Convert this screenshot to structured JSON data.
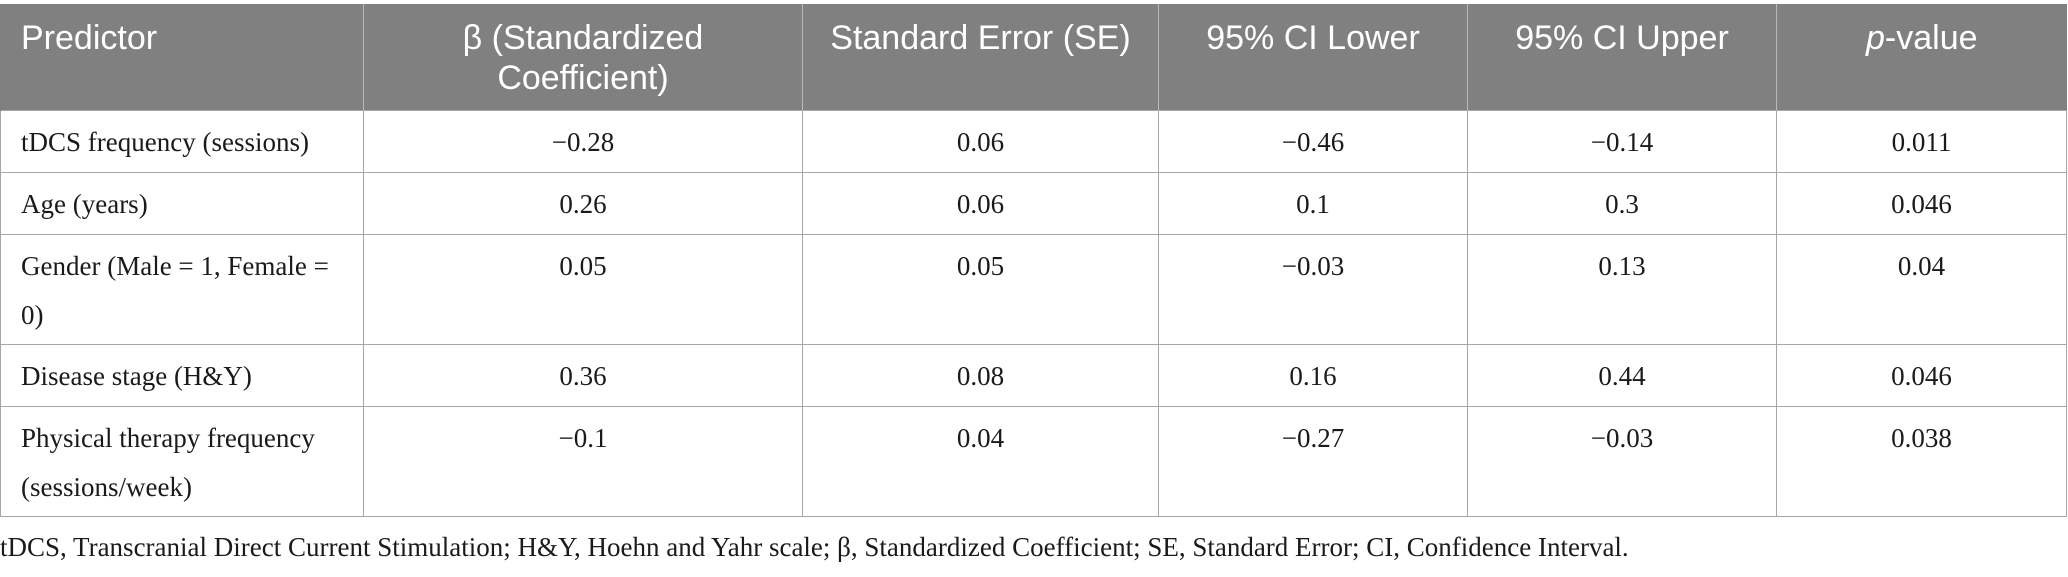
{
  "table": {
    "headers": [
      {
        "text": "Predictor"
      },
      {
        "text": "β (Standardized Coefficient)"
      },
      {
        "text": "Standard Error (SE)"
      },
      {
        "text": "95% CI Lower"
      },
      {
        "text": "95% CI Upper"
      },
      {
        "italic": "p",
        "text": "-value"
      }
    ],
    "rows": [
      {
        "predictor": "tDCS frequency (sessions)",
        "beta": "−0.28",
        "se": "0.06",
        "ci_lower": "−0.46",
        "ci_upper": "−0.14",
        "p": "0.011"
      },
      {
        "predictor": "Age (years)",
        "beta": "0.26",
        "se": "0.06",
        "ci_lower": "0.1",
        "ci_upper": "0.3",
        "p": "0.046"
      },
      {
        "predictor": "Gender (Male = 1, Female = 0)",
        "beta": "0.05",
        "se": "0.05",
        "ci_lower": "−0.03",
        "ci_upper": "0.13",
        "p": "0.04"
      },
      {
        "predictor": "Disease stage (H&Y)",
        "beta": "0.36",
        "se": "0.08",
        "ci_lower": "0.16",
        "ci_upper": "0.44",
        "p": "0.046"
      },
      {
        "predictor": "Physical therapy frequency (sessions/week)",
        "beta": "−0.1",
        "se": "0.04",
        "ci_lower": "−0.27",
        "ci_upper": "−0.03",
        "p": "0.038"
      }
    ]
  },
  "footnote": "tDCS, Transcranial Direct Current Stimulation; H&Y, Hoehn and Yahr scale; β, Standardized Coefficient; SE, Standard Error; CI, Confidence Interval.",
  "colors": {
    "header_bg": "#808080",
    "header_text": "#ffffff",
    "border": "#a6a6a6"
  }
}
